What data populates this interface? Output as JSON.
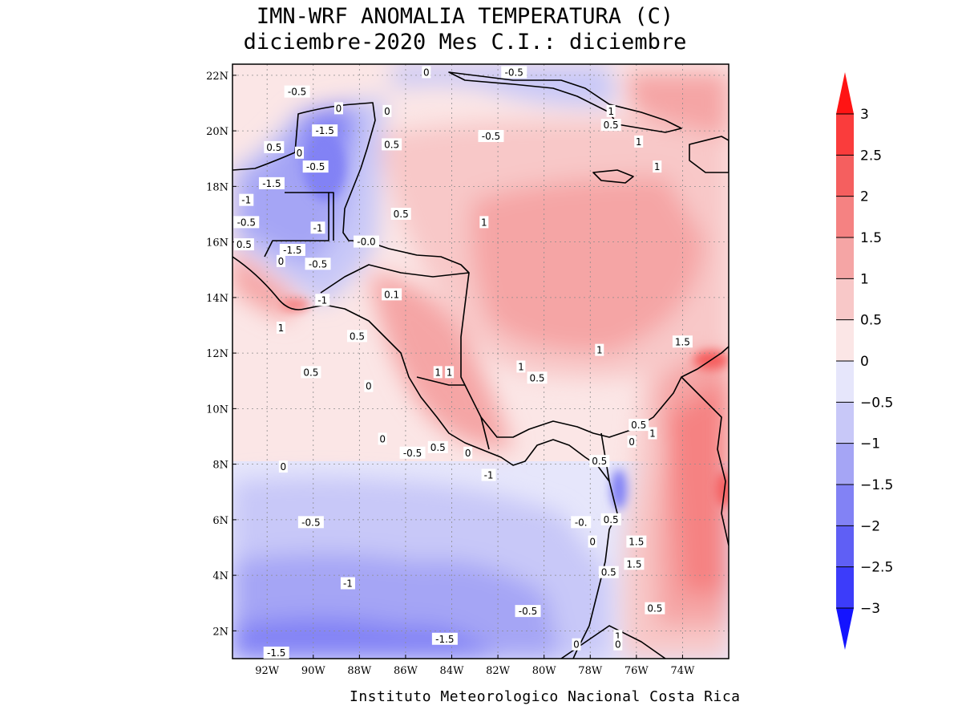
{
  "title": {
    "line1": "IMN-WRF  ANOMALIA TEMPERATURA (C)",
    "line2": "diciembre-2020 Mes C.I.: diciembre"
  },
  "credit": "Instituto Meteorologico Nacional Costa Rica",
  "map": {
    "lon_range": [
      -93.5,
      -72.0
    ],
    "lat_range": [
      1.0,
      22.4
    ],
    "lon_ticks": [
      -92,
      -90,
      -88,
      -86,
      -84,
      -82,
      -80,
      -78,
      -76,
      -74
    ],
    "lon_tick_labels": [
      "92W",
      "90W",
      "88W",
      "86W",
      "84W",
      "82W",
      "80W",
      "78W",
      "76W",
      "74W"
    ],
    "lat_ticks": [
      2,
      4,
      6,
      8,
      10,
      12,
      14,
      16,
      18,
      20,
      22
    ],
    "lat_tick_labels": [
      "2N",
      "4N",
      "6N",
      "8N",
      "10N",
      "12N",
      "14N",
      "16N",
      "18N",
      "20N",
      "22N"
    ],
    "contour_labels": [
      {
        "text": "-0.5",
        "lon": -90.7,
        "lat": 21.4
      },
      {
        "text": "0",
        "lon": -88.9,
        "lat": 20.8
      },
      {
        "text": "-1.5",
        "lon": -89.5,
        "lat": 20.0
      },
      {
        "text": "0.5",
        "lon": -91.7,
        "lat": 19.4
      },
      {
        "text": "0",
        "lon": -90.6,
        "lat": 19.2
      },
      {
        "text": "-0.5",
        "lon": -89.9,
        "lat": 18.7
      },
      {
        "text": "-1.5",
        "lon": -91.8,
        "lat": 18.1
      },
      {
        "text": "-1",
        "lon": -92.9,
        "lat": 17.5
      },
      {
        "text": "-0.5",
        "lon": -92.9,
        "lat": 16.7
      },
      {
        "text": "-1",
        "lon": -89.8,
        "lat": 16.5
      },
      {
        "text": "0.5",
        "lon": -93.0,
        "lat": 15.9
      },
      {
        "text": "-1.5",
        "lon": -90.9,
        "lat": 15.7
      },
      {
        "text": "0",
        "lon": -91.4,
        "lat": 15.3
      },
      {
        "text": "-0.5",
        "lon": -89.8,
        "lat": 15.2
      },
      {
        "text": "-0.0",
        "lon": -87.7,
        "lat": 16.0
      },
      {
        "text": "0.5",
        "lon": -86.2,
        "lat": 17.0
      },
      {
        "text": "0.5",
        "lon": -86.6,
        "lat": 19.5
      },
      {
        "text": "0",
        "lon": -86.8,
        "lat": 20.7
      },
      {
        "text": "0",
        "lon": -85.1,
        "lat": 22.1
      },
      {
        "text": "-0.5",
        "lon": -81.3,
        "lat": 22.1
      },
      {
        "text": "1",
        "lon": -77.1,
        "lat": 20.7
      },
      {
        "text": "0.5",
        "lon": -77.1,
        "lat": 20.2
      },
      {
        "text": "-0.5",
        "lon": -82.3,
        "lat": 19.8
      },
      {
        "text": "1",
        "lon": -75.9,
        "lat": 19.6
      },
      {
        "text": "1",
        "lon": -75.1,
        "lat": 18.7
      },
      {
        "text": "1",
        "lon": -82.6,
        "lat": 16.7
      },
      {
        "text": "0.1",
        "lon": -86.6,
        "lat": 14.1
      },
      {
        "text": "-1",
        "lon": -89.6,
        "lat": 13.9
      },
      {
        "text": "1",
        "lon": -91.4,
        "lat": 12.9
      },
      {
        "text": "0.5",
        "lon": -88.1,
        "lat": 12.6
      },
      {
        "text": "0.5",
        "lon": -90.1,
        "lat": 11.3
      },
      {
        "text": "0",
        "lon": -87.6,
        "lat": 10.8
      },
      {
        "text": "1",
        "lon": -84.6,
        "lat": 11.3
      },
      {
        "text": "1",
        "lon": -84.1,
        "lat": 11.3
      },
      {
        "text": "1",
        "lon": -81.0,
        "lat": 11.5
      },
      {
        "text": "0.5",
        "lon": -80.3,
        "lat": 11.1
      },
      {
        "text": "1",
        "lon": -77.6,
        "lat": 12.1
      },
      {
        "text": "1.5",
        "lon": -74.0,
        "lat": 12.4
      },
      {
        "text": "0",
        "lon": -87.0,
        "lat": 8.9
      },
      {
        "text": "-0.5",
        "lon": -85.7,
        "lat": 8.4
      },
      {
        "text": "0.5",
        "lon": -84.6,
        "lat": 8.6
      },
      {
        "text": "0",
        "lon": -83.3,
        "lat": 8.4
      },
      {
        "text": "-1",
        "lon": -82.4,
        "lat": 7.6
      },
      {
        "text": "0.5",
        "lon": -75.9,
        "lat": 9.4
      },
      {
        "text": "0",
        "lon": -76.2,
        "lat": 8.8
      },
      {
        "text": "1",
        "lon": -75.3,
        "lat": 9.1
      },
      {
        "text": "0.5",
        "lon": -77.6,
        "lat": 8.1
      },
      {
        "text": "0",
        "lon": -91.3,
        "lat": 7.9
      },
      {
        "text": "-0.5",
        "lon": -90.1,
        "lat": 5.9
      },
      {
        "text": "-0.",
        "lon": -78.4,
        "lat": 5.9
      },
      {
        "text": "0.5",
        "lon": -77.1,
        "lat": 6.0
      },
      {
        "text": "0",
        "lon": -77.9,
        "lat": 5.2
      },
      {
        "text": "1.5",
        "lon": -76.0,
        "lat": 5.2
      },
      {
        "text": "0.5",
        "lon": -77.2,
        "lat": 4.1
      },
      {
        "text": "1.5",
        "lon": -76.1,
        "lat": 4.4
      },
      {
        "text": "-1",
        "lon": -88.5,
        "lat": 3.7
      },
      {
        "text": "-0.5",
        "lon": -80.7,
        "lat": 2.7
      },
      {
        "text": "0.5",
        "lon": -75.2,
        "lat": 2.8
      },
      {
        "text": "1",
        "lon": -76.8,
        "lat": 1.8
      },
      {
        "text": "0",
        "lon": -76.8,
        "lat": 1.5
      },
      {
        "text": "0",
        "lon": -78.6,
        "lat": 1.5
      },
      {
        "text": "-1.5",
        "lon": -84.3,
        "lat": 1.7
      },
      {
        "text": "-1.5",
        "lon": -91.6,
        "lat": 1.2
      }
    ]
  },
  "colorbar": {
    "levels": [
      -3,
      -2.5,
      -2,
      -1.5,
      -1,
      -0.5,
      0,
      0.5,
      1,
      1.5,
      2,
      2.5,
      3
    ],
    "labels": [
      "3",
      "2.5",
      "2",
      "1.5",
      "1",
      "0.5",
      "0",
      "−0.5",
      "−1",
      "−1.5",
      "−2",
      "−2.5",
      "−3"
    ],
    "colors": [
      "#1414ff",
      "#3c3cfa",
      "#5f5ff5",
      "#8282f5",
      "#a5a5f5",
      "#c8c8f8",
      "#e6e6fb",
      "#fbe6e6",
      "#f8c8c8",
      "#f5a5a5",
      "#f58282",
      "#f55f5f",
      "#fa3c3c",
      "#ff1414"
    ]
  },
  "colors": {
    "frame": "#000000",
    "coast": "#000000",
    "grid": "#8c8c8c"
  }
}
